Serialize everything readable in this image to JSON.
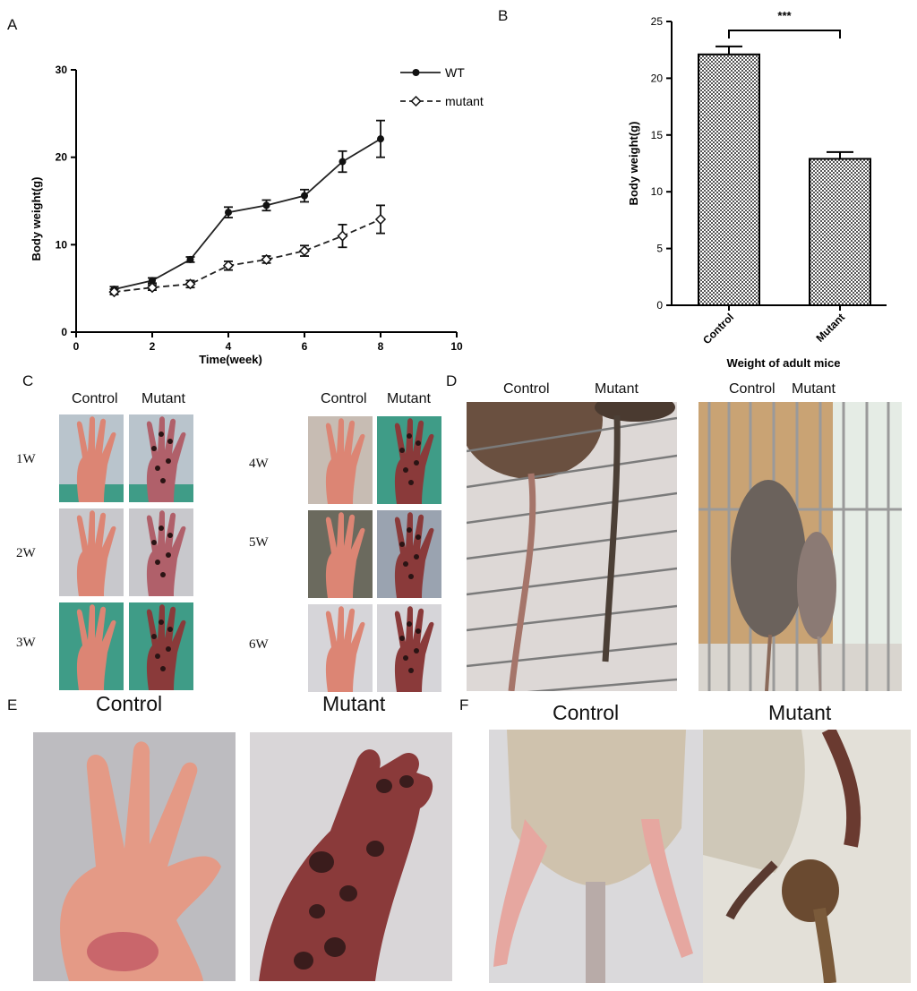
{
  "panels": {
    "a": "A",
    "b": "B",
    "c": "C",
    "d": "D",
    "e": "E",
    "f": "F"
  },
  "colors": {
    "skin": "#d9826f",
    "skin_light": "#efb8a8",
    "lesion": "#3a1c1c",
    "glove": "#3f9c87",
    "fur_grey": "#6b625c",
    "fur_light": "#cfc2ad",
    "bar_fill": "#9a9a9a"
  },
  "chart_a": {
    "type": "line",
    "ylabel": "Body weight(g)",
    "xlabel": "Time(week)",
    "xlim": [
      0,
      10
    ],
    "ylim": [
      0,
      30
    ],
    "xticks": [
      "0",
      "2",
      "4",
      "6",
      "8",
      "10"
    ],
    "yticks": [
      "0",
      "10",
      "20",
      "30"
    ],
    "legend_position": "top-right",
    "series": [
      {
        "name": "WT",
        "style": "solid",
        "marker": "circle",
        "x": [
          1,
          2,
          3,
          4,
          5,
          6,
          7,
          8
        ],
        "y": [
          4.9,
          5.9,
          8.3,
          13.7,
          14.5,
          15.6,
          19.5,
          22.1
        ],
        "err": [
          0.3,
          0.3,
          0.3,
          0.6,
          0.6,
          0.7,
          1.2,
          2.1
        ]
      },
      {
        "name": "mutant",
        "style": "dashed",
        "marker": "diamond",
        "x": [
          1,
          2,
          3,
          4,
          5,
          6,
          7,
          8
        ],
        "y": [
          4.6,
          5.1,
          5.5,
          7.6,
          8.3,
          9.3,
          11.0,
          12.9
        ],
        "err": [
          0.3,
          0.3,
          0.4,
          0.5,
          0.4,
          0.6,
          1.3,
          1.6
        ]
      }
    ]
  },
  "chart_b": {
    "type": "bar",
    "ylabel": "Body weight(g)",
    "xlabel": "Weight of adult mice",
    "categories": [
      "Control",
      "Mutant"
    ],
    "values": [
      22.1,
      12.9
    ],
    "err": [
      0.7,
      0.6
    ],
    "ylim": [
      0,
      25
    ],
    "yticks": [
      "0",
      "5",
      "10",
      "15",
      "20",
      "25"
    ],
    "significance": "***"
  },
  "panel_c": {
    "col_control": "Control",
    "col_mutant": "Mutant",
    "weeks_left": [
      "1W",
      "2W",
      "3W"
    ],
    "weeks_right": [
      "4W",
      "5W",
      "6W"
    ]
  },
  "panel_d": {
    "left_control": "Control",
    "left_mutant": "Mutant",
    "right_control": "Control",
    "right_mutant": "Mutant"
  },
  "panel_e": {
    "control": "Control",
    "mutant": "Mutant"
  },
  "panel_f": {
    "control": "Control",
    "mutant": "Mutant"
  }
}
